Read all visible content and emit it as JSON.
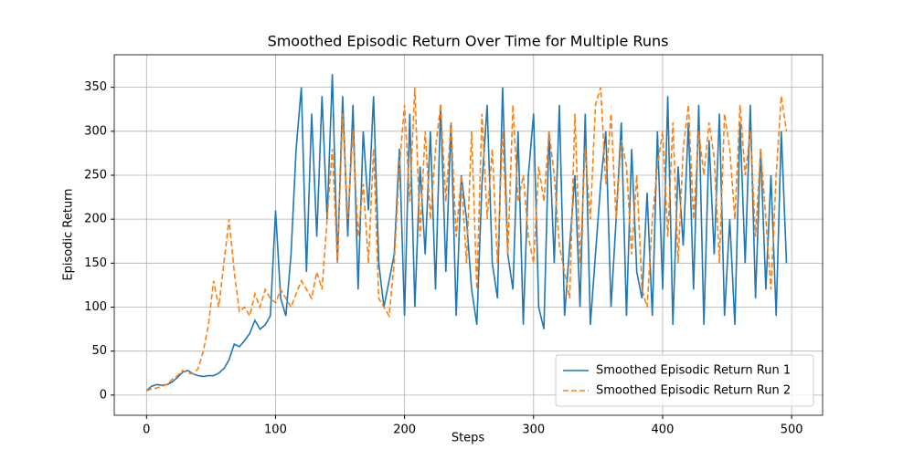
{
  "chart_data": {
    "type": "line",
    "title": "Smoothed Episodic Return Over Time for Multiple Runs",
    "xlabel": "Steps",
    "ylabel": "Episodic Return",
    "x": [
      0,
      4,
      8,
      12,
      16,
      20,
      24,
      28,
      32,
      36,
      40,
      44,
      48,
      52,
      56,
      60,
      64,
      68,
      72,
      76,
      80,
      84,
      88,
      92,
      96,
      100,
      104,
      108,
      112,
      116,
      120,
      124,
      128,
      132,
      136,
      140,
      144,
      148,
      152,
      156,
      160,
      164,
      168,
      172,
      176,
      180,
      184,
      188,
      192,
      196,
      200,
      204,
      208,
      212,
      216,
      220,
      224,
      228,
      232,
      236,
      240,
      244,
      248,
      252,
      256,
      260,
      264,
      268,
      272,
      276,
      280,
      284,
      288,
      292,
      296,
      300,
      304,
      308,
      312,
      316,
      320,
      324,
      328,
      332,
      336,
      340,
      344,
      348,
      352,
      356,
      360,
      364,
      368,
      372,
      376,
      380,
      384,
      388,
      392,
      396,
      400,
      404,
      408,
      412,
      416,
      420,
      424,
      428,
      432,
      436,
      440,
      444,
      448,
      452,
      456,
      460,
      464,
      468,
      472,
      476,
      480,
      484,
      488,
      492,
      496
    ],
    "series": [
      {
        "name": "Smoothed Episodic Return Run 1",
        "color": "#1f77b4",
        "linestyle": "solid",
        "values": [
          5,
          10,
          12,
          11,
          12,
          15,
          20,
          26,
          28,
          24,
          22,
          21,
          22,
          22,
          25,
          30,
          40,
          58,
          55,
          62,
          70,
          85,
          75,
          80,
          90,
          210,
          110,
          90,
          160,
          280,
          350,
          140,
          320,
          180,
          340,
          200,
          365,
          150,
          340,
          180,
          330,
          120,
          300,
          210,
          340,
          150,
          100,
          130,
          160,
          280,
          90,
          320,
          100,
          260,
          160,
          300,
          120,
          330,
          140,
          310,
          90,
          250,
          200,
          120,
          80,
          240,
          330,
          150,
          110,
          350,
          160,
          120,
          300,
          80,
          250,
          320,
          100,
          75,
          300,
          150,
          330,
          90,
          170,
          250,
          100,
          320,
          80,
          160,
          240,
          300,
          100,
          200,
          310,
          90,
          280,
          140,
          110,
          230,
          90,
          300,
          120,
          340,
          80,
          260,
          170,
          310,
          120,
          330,
          80,
          290,
          160,
          320,
          90,
          200,
          80,
          310,
          150,
          330,
          110,
          280,
          120,
          250,
          90,
          300,
          150
        ]
      },
      {
        "name": "Smoothed Episodic Return Run 2",
        "color": "#ff7f0e",
        "linestyle": "dashed",
        "values": [
          5,
          7,
          8,
          10,
          12,
          18,
          22,
          28,
          25,
          24,
          30,
          50,
          80,
          130,
          100,
          150,
          200,
          140,
          95,
          100,
          90,
          115,
          100,
          120,
          110,
          105,
          120,
          110,
          100,
          115,
          130,
          120,
          110,
          140,
          120,
          200,
          280,
          150,
          320,
          200,
          300,
          180,
          240,
          150,
          280,
          110,
          100,
          90,
          150,
          260,
          330,
          220,
          350,
          180,
          300,
          200,
          280,
          330,
          220,
          310,
          180,
          250,
          150,
          300,
          120,
          320,
          200,
          280,
          150,
          300,
          160,
          330,
          220,
          250,
          180,
          150,
          260,
          220,
          300,
          250,
          170,
          140,
          110,
          320,
          150,
          280,
          200,
          330,
          350,
          240,
          320,
          200,
          290,
          260,
          160,
          250,
          120,
          100,
          200,
          260,
          300,
          180,
          310,
          150,
          280,
          330,
          200,
          300,
          250,
          310,
          270,
          150,
          320,
          280,
          200,
          330,
          250,
          300,
          180,
          280,
          200,
          120,
          250,
          340,
          300
        ]
      }
    ],
    "xlim": [
      -25,
      524
    ],
    "ylim": [
      -23,
      387
    ],
    "xticks": [
      0,
      100,
      200,
      300,
      400,
      500
    ],
    "yticks": [
      0,
      50,
      100,
      150,
      200,
      250,
      300,
      350
    ],
    "grid": true,
    "legend_loc": "lower right"
  }
}
